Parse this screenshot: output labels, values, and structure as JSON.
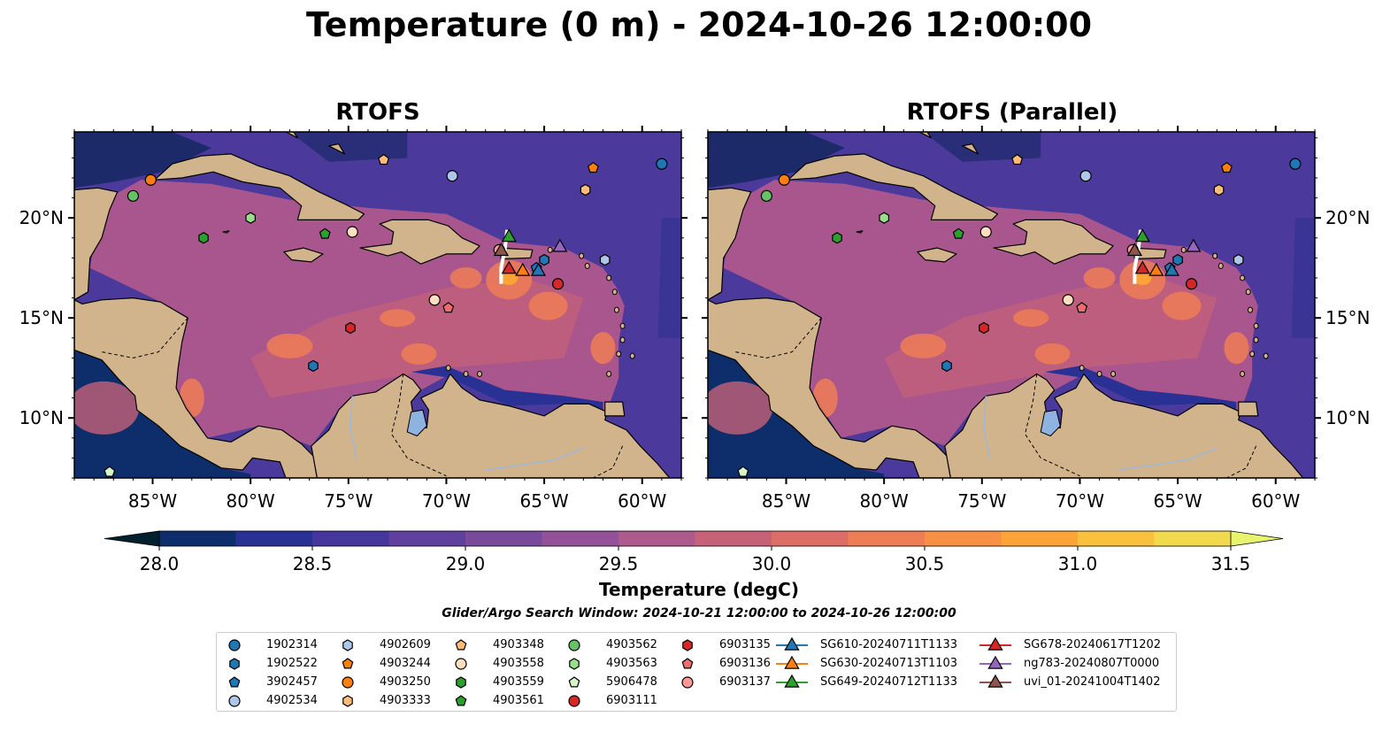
{
  "title": "Temperature (0 m) - 2024-10-26 12:00:00",
  "panels": [
    {
      "title": "RTOFS"
    },
    {
      "title": "RTOFS (Parallel)"
    }
  ],
  "map": {
    "lon_range": [
      -89,
      -58
    ],
    "lat_range": [
      7,
      24.3
    ],
    "lon_ticks": [
      -85,
      -80,
      -75,
      -70,
      -65,
      -60
    ],
    "lon_tick_labels": [
      "85°W",
      "80°W",
      "75°W",
      "70°W",
      "65°W",
      "60°W"
    ],
    "lat_ticks": [
      10,
      15,
      20
    ],
    "lat_tick_labels": [
      "10°N",
      "15°N",
      "20°N"
    ],
    "land_color": "#d2b48c",
    "lake_color": "#8fb3e0"
  },
  "colorbar": {
    "label": "Temperature (degC)",
    "min": 28.0,
    "max": 31.5,
    "step": 0.25,
    "ticks": [
      "28.0",
      "28.5",
      "29.0",
      "29.5",
      "30.0",
      "30.5",
      "31.0",
      "31.5"
    ],
    "colors": [
      "#03202f",
      "#0e2d6b",
      "#2a3194",
      "#46379e",
      "#5f409f",
      "#794a9c",
      "#925199",
      "#ad5a8d",
      "#c66278",
      "#dd6d67",
      "#ee7c55",
      "#f79044",
      "#fca437",
      "#f9c13d",
      "#f2da4f",
      "#e8f46e"
    ]
  },
  "search_window": "Glider/Argo Search Window: 2024-10-21 12:00:00 to 2024-10-26 12:00:00",
  "legend": [
    {
      "label": "1902314",
      "marker": "circle",
      "color": "#1f77b4"
    },
    {
      "label": "1902522",
      "marker": "hexagon",
      "color": "#1f77b4"
    },
    {
      "label": "3902457",
      "marker": "pentagon",
      "color": "#1f77b4"
    },
    {
      "label": "4902534",
      "marker": "circle",
      "color": "#aec7e8"
    },
    {
      "label": "4902609",
      "marker": "hexagon",
      "color": "#aec7e8"
    },
    {
      "label": "4903244",
      "marker": "pentagon",
      "color": "#ff7f0e"
    },
    {
      "label": "4903250",
      "marker": "circle",
      "color": "#ff7f0e"
    },
    {
      "label": "4903333",
      "marker": "hexagon",
      "color": "#ffbb78"
    },
    {
      "label": "4903348",
      "marker": "pentagon",
      "color": "#ffbb78"
    },
    {
      "label": "4903558",
      "marker": "circle",
      "color": "#ffdfbf"
    },
    {
      "label": "4903559",
      "marker": "hexagon",
      "color": "#2ca02c"
    },
    {
      "label": "4903561",
      "marker": "pentagon",
      "color": "#2ca02c"
    },
    {
      "label": "4903562",
      "marker": "circle",
      "color": "#66c266"
    },
    {
      "label": "4903563",
      "marker": "hexagon",
      "color": "#98df8a"
    },
    {
      "label": "5906478",
      "marker": "pentagon",
      "color": "#d5f5c8"
    },
    {
      "label": "6903111",
      "marker": "circle",
      "color": "#d62728"
    },
    {
      "label": "6903135",
      "marker": "hexagon",
      "color": "#d62728"
    },
    {
      "label": "6903136",
      "marker": "pentagon",
      "color": "#ee6e70"
    },
    {
      "label": "6903137",
      "marker": "circle",
      "color": "#ff9896"
    },
    {
      "label": "SG610-20240711T1133",
      "marker": "triangle",
      "color": "#1f77b4",
      "line": true
    },
    {
      "label": "SG630-20240713T1103",
      "marker": "triangle",
      "color": "#ff7f0e",
      "line": true
    },
    {
      "label": "SG649-20240712T1133",
      "marker": "triangle",
      "color": "#2ca02c",
      "line": true
    },
    {
      "label": "SG678-20240617T1202",
      "marker": "triangle",
      "color": "#d62728",
      "line": true
    },
    {
      "label": "ng783-20240807T0000",
      "marker": "triangle",
      "color": "#9467bd",
      "line": true
    },
    {
      "label": "uvi_01-20241004T1402",
      "marker": "triangle",
      "color": "#8c564b",
      "line": true
    }
  ],
  "observations": [
    {
      "id": "1902314",
      "lon": -59.0,
      "lat": 22.7
    },
    {
      "id": "1902522",
      "lon": -76.8,
      "lat": 12.6
    },
    {
      "id": "1902522",
      "lon": -65.0,
      "lat": 17.9
    },
    {
      "id": "3902457",
      "lon": -65.4,
      "lat": 17.5
    },
    {
      "id": "4902534",
      "lon": -69.7,
      "lat": 22.1
    },
    {
      "id": "4902609",
      "lon": -61.9,
      "lat": 17.9
    },
    {
      "id": "4903244",
      "lon": -62.5,
      "lat": 22.5
    },
    {
      "id": "4903250",
      "lon": -85.1,
      "lat": 21.9
    },
    {
      "id": "4903333",
      "lon": -62.9,
      "lat": 21.4
    },
    {
      "id": "4903348",
      "lon": -73.2,
      "lat": 22.9
    },
    {
      "id": "4903558",
      "lon": -74.8,
      "lat": 19.3
    },
    {
      "id": "4903558",
      "lon": -70.6,
      "lat": 15.9
    },
    {
      "id": "4903559",
      "lon": -82.4,
      "lat": 19.0
    },
    {
      "id": "4903561",
      "lon": -76.2,
      "lat": 19.2
    },
    {
      "id": "4903562",
      "lon": -86.0,
      "lat": 21.1
    },
    {
      "id": "4903563",
      "lon": -80.0,
      "lat": 20.0
    },
    {
      "id": "5906478",
      "lon": -87.2,
      "lat": 7.3
    },
    {
      "id": "6903111",
      "lon": -64.3,
      "lat": 16.7
    },
    {
      "id": "6903135",
      "lon": -74.9,
      "lat": 14.5
    },
    {
      "id": "6903136",
      "lon": -69.9,
      "lat": 15.5
    },
    {
      "id": "6903137",
      "lon": -67.3,
      "lat": 18.4
    },
    {
      "id": "SG610-20240711T1133",
      "lon": -65.3,
      "lat": 17.4
    },
    {
      "id": "SG630-20240713T1103",
      "lon": -66.1,
      "lat": 17.4
    },
    {
      "id": "SG649-20240712T1133",
      "lon": -66.8,
      "lat": 19.1
    },
    {
      "id": "SG678-20240617T1202",
      "lon": -66.8,
      "lat": 17.5
    },
    {
      "id": "ng783-20240807T0000",
      "lon": -64.2,
      "lat": 18.6
    },
    {
      "id": "uvi_01-20241004T1402",
      "lon": -67.2,
      "lat": 18.4
    }
  ]
}
